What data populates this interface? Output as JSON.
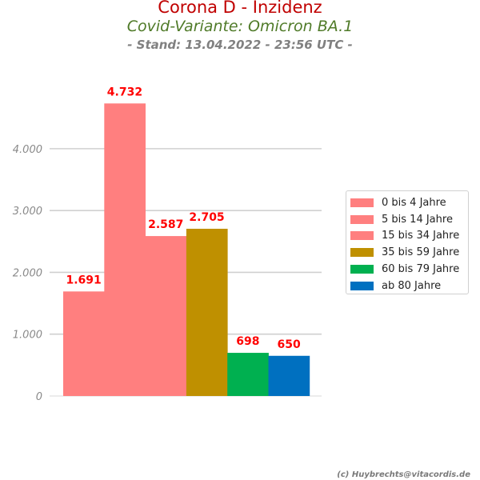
{
  "header": {
    "title": "Corona D - Inzidenz",
    "subtitle": "Covid-Variante: Omicron BA.1",
    "stand": "- Stand: 13.04.2022 - 23:56 UTC -"
  },
  "credit": "(c) Huybrechts@vitacordis.de",
  "chart_data": {
    "type": "bar",
    "categories": [
      "0 bis 4 Jahre",
      "5 bis 14 Jahre",
      "15 bis 34 Jahre",
      "35 bis 59 Jahre",
      "60 bis 79 Jahre",
      "ab 80 Jahre"
    ],
    "values": [
      1691,
      4732,
      2587,
      2705,
      698,
      650
    ],
    "value_labels": [
      "1.691",
      "4.732",
      "2.587",
      "2.705",
      "698",
      "650"
    ],
    "colors": [
      "#ff7f7f",
      "#ff7f7f",
      "#ff7f7f",
      "#bf9000",
      "#00b050",
      "#0070c0"
    ],
    "value_label_color": "#ff0000",
    "title": "Corona D - Inzidenz",
    "xlabel": "",
    "ylabel": "",
    "ylim": [
      0,
      5000
    ],
    "yticks": [
      0,
      1000,
      2000,
      3000,
      4000
    ],
    "ytick_labels": [
      "0",
      "1.000",
      "2.000",
      "3.000",
      "4.000"
    ],
    "grid": true,
    "legend_position": "right"
  }
}
